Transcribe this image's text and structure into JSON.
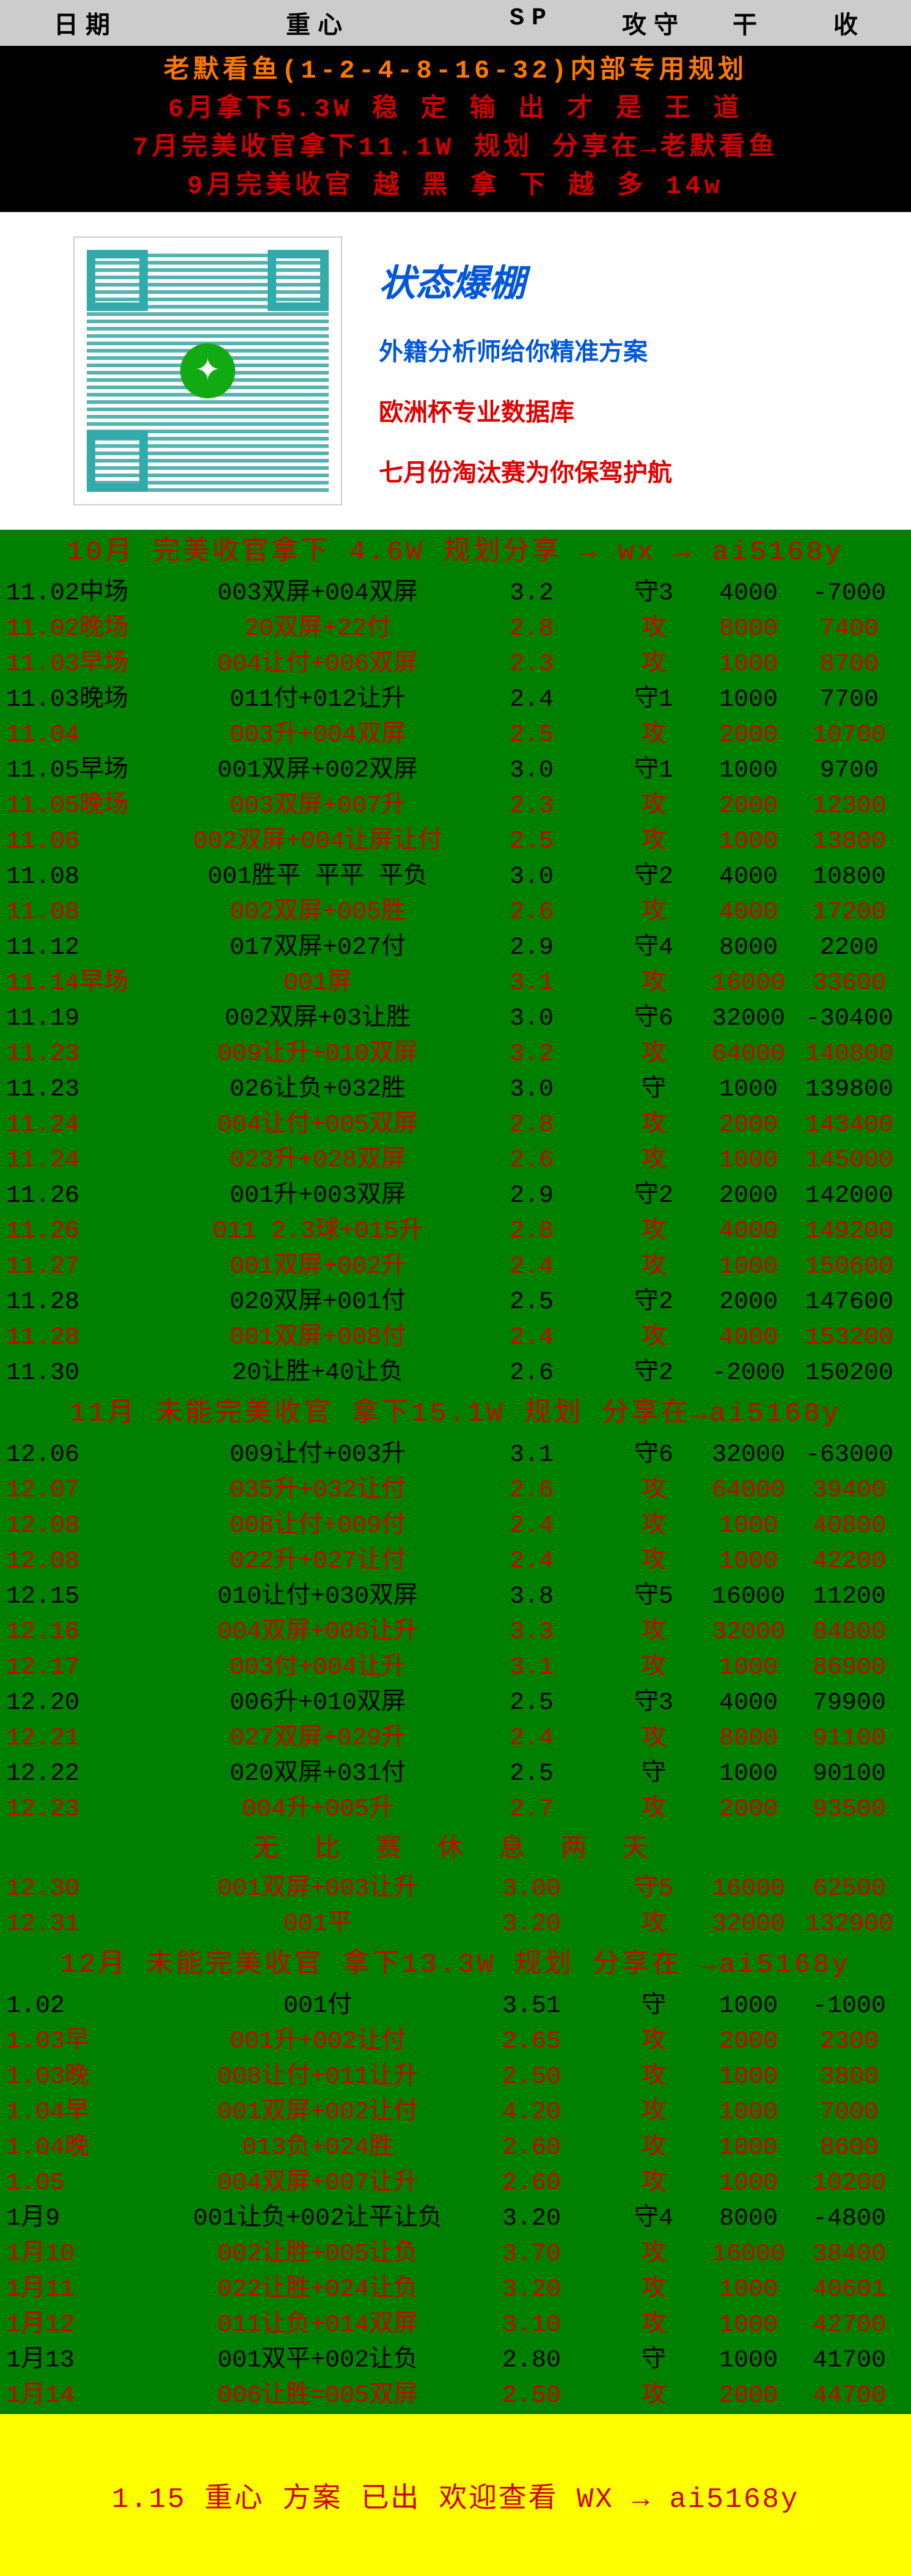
{
  "header": {
    "c1": "日期",
    "c2": "重心",
    "c3": "SP",
    "c4": "攻守",
    "c5": "干",
    "c6": "收"
  },
  "banner": {
    "l1": {
      "text": "老默看鱼(1-2-4-8-16-32)内部专用规划",
      "color": "#ff7800"
    },
    "l2": {
      "text": "6月拿下5.3W 稳 定 输 出 才 是 王 道",
      "color": "#d00000"
    },
    "l3": {
      "text": "7月完美收官拿下11.1W 规划 分享在→老默看鱼",
      "color": "#d00000"
    },
    "l4": {
      "text": "9月完美收官   越 黑 拿 下 越 多 14w",
      "color": "#d00000"
    }
  },
  "promo": {
    "t1": "状态爆棚",
    "t2": "外籍分析师给你精准方案",
    "t3": "欧洲杯专业数据库",
    "t4": "七月份淘汰赛为你保驾护航"
  },
  "sections": [
    {
      "title": "10月 完美收官拿下 4.6W  规划分享 → wx → ai5168y",
      "rows": [
        {
          "style": "black",
          "c": [
            "11.02中场",
            "003双屏+004双屏",
            "3.2",
            "守3",
            "4000",
            "-7000"
          ]
        },
        {
          "style": "red",
          "c": [
            "11.02晚场",
            "20双屏+22付",
            "2.8",
            "攻",
            "8000",
            "7400"
          ]
        },
        {
          "style": "red",
          "c": [
            "11.03早场",
            "004让付+006双屏",
            "2.3",
            "攻",
            "1000",
            "8700"
          ]
        },
        {
          "style": "black",
          "c": [
            "11.03晚场",
            "011付+012让升",
            "2.4",
            "守1",
            "1000",
            "7700"
          ]
        },
        {
          "style": "red",
          "c": [
            "11.04",
            "003升+004双屏",
            "2.5",
            "攻",
            "2000",
            "10700"
          ]
        },
        {
          "style": "black",
          "c": [
            "11.05早场",
            "001双屏+002双屏",
            "3.0",
            "守1",
            "1000",
            "9700"
          ]
        },
        {
          "style": "red",
          "c": [
            "11.05晚场",
            "003双屏+007升",
            "2.3",
            "攻",
            "2000",
            "12300"
          ]
        },
        {
          "style": "red",
          "c": [
            "11.06",
            "002双屏+004让屏让付",
            "2.5",
            "攻",
            "1000",
            "13800"
          ]
        },
        {
          "style": "black",
          "c": [
            "11.08",
            "001胜平 平平 平负",
            "3.0",
            "守2",
            "4000",
            "10800"
          ]
        },
        {
          "style": "red",
          "c": [
            "11.08",
            "002双屏+005胜",
            "2.6",
            "攻",
            "4000",
            "17200"
          ]
        },
        {
          "style": "black",
          "c": [
            "11.12",
            "017双屏+027付",
            "2.9",
            "守4",
            "8000",
            "2200"
          ]
        },
        {
          "style": "red",
          "c": [
            "11.14早场",
            "001屏",
            "3.1",
            "攻",
            "16000",
            "33600"
          ]
        },
        {
          "style": "black",
          "c": [
            "11.19",
            "002双屏+03让胜",
            "3.0",
            "守6",
            "32000",
            "-30400"
          ]
        },
        {
          "style": "red",
          "c": [
            "11.23",
            "009让升+010双屏",
            "3.2",
            "攻",
            "64000",
            "140800"
          ]
        },
        {
          "style": "black",
          "c": [
            "11.23",
            "026让负+032胜",
            "3.0",
            "守",
            "1000",
            "139800"
          ]
        },
        {
          "style": "red",
          "c": [
            "11.24",
            "004让付+005双屏",
            "2.8",
            "攻",
            "2000",
            "143400"
          ]
        },
        {
          "style": "red",
          "c": [
            "11.24",
            "023升+028双屏",
            "2.6",
            "攻",
            "1000",
            "145000"
          ]
        },
        {
          "style": "black",
          "c": [
            "11.26",
            "001升+003双屏",
            "2.9",
            "守2",
            "2000",
            "142000"
          ]
        },
        {
          "style": "red",
          "c": [
            "11.26",
            "011 2.3球+015升",
            "2.8",
            "攻",
            "4000",
            "149200"
          ]
        },
        {
          "style": "red",
          "c": [
            "11.27",
            "001双屏+002升",
            "2.4",
            "攻",
            "1000",
            "150600"
          ]
        },
        {
          "style": "black",
          "c": [
            "11.28",
            "020双屏+001付",
            "2.5",
            "守2",
            "2000",
            "147600"
          ]
        },
        {
          "style": "red",
          "c": [
            "11.28",
            "001双屏+008付",
            "2.4",
            "攻",
            "4000",
            "153200"
          ]
        },
        {
          "style": "black",
          "c": [
            "11.30",
            "20让胜+40让负",
            "2.6",
            "守2",
            "-2000",
            "150200"
          ]
        }
      ]
    },
    {
      "title": "11月 未能完美收官 拿下15.1W 规划 分享在→ai5168y",
      "rows": [
        {
          "style": "black",
          "c": [
            "12.06",
            "009让付+003升",
            "3.1",
            "守6",
            "32000",
            "-63000"
          ]
        },
        {
          "style": "red",
          "c": [
            "12.07",
            "035升+032让付",
            "2.6",
            "攻",
            "64000",
            "39400"
          ]
        },
        {
          "style": "red",
          "c": [
            "12.08",
            "008让付+009付",
            "2.4",
            "攻",
            "1000",
            "40800"
          ]
        },
        {
          "style": "red",
          "c": [
            "12.08",
            "022升+027让付",
            "2.4",
            "攻",
            "1000",
            "42200"
          ]
        },
        {
          "style": "black",
          "c": [
            "12.15",
            "010让付+030双屏",
            "3.8",
            "守5",
            "16000",
            "11200"
          ]
        },
        {
          "style": "red",
          "c": [
            "12.16",
            "004双屏+006让升",
            "3.3",
            "攻",
            "32000",
            "84800"
          ]
        },
        {
          "style": "red",
          "c": [
            "12.17",
            "003付+004让升",
            "3.1",
            "攻",
            "1000",
            "86900"
          ]
        },
        {
          "style": "black",
          "c": [
            "12.20",
            "006升+010双屏",
            "2.5",
            "守3",
            "4000",
            "79900"
          ]
        },
        {
          "style": "red",
          "c": [
            "12.21",
            "027双屏+029升",
            "2.4",
            "攻",
            "8000",
            "91100"
          ]
        },
        {
          "style": "black",
          "c": [
            "12.22",
            "020双屏+031付",
            "2.5",
            "守",
            "1000",
            "90100"
          ]
        },
        {
          "style": "red",
          "c": [
            "12.23",
            "004升+005升",
            "2.7",
            "攻",
            "2000",
            "93500"
          ]
        }
      ],
      "rest": "无 比 赛 休 息 两 天",
      "rows2": [
        {
          "style": "red",
          "c": [
            "12.30",
            "001双屏+003让升",
            "3.00",
            "守5",
            "16000",
            "62500"
          ]
        },
        {
          "style": "red",
          "c": [
            "12.31",
            "001平",
            "3.20",
            "攻",
            "32000",
            "132900"
          ]
        }
      ]
    },
    {
      "title": "12月   未能完美收官 拿下13.3W 规划 分享在 →ai5168y",
      "rows": [
        {
          "style": "black",
          "c": [
            "1.02",
            "001付",
            "3.51",
            "守",
            "1000",
            "-1000"
          ]
        },
        {
          "style": "red",
          "c": [
            "1.03早",
            "001升+002让付",
            "2.65",
            "攻",
            "2000",
            "2300"
          ]
        },
        {
          "style": "red",
          "c": [
            "1.03晚",
            "008让付+011让升",
            "2.50",
            "攻",
            "1000",
            "3800"
          ]
        },
        {
          "style": "red",
          "c": [
            "1.04早",
            "001双屏+002让付",
            "4.20",
            "攻",
            "1000",
            "7000"
          ]
        },
        {
          "style": "red",
          "c": [
            "1.04晚",
            "013负+024胜",
            "2.60",
            "攻",
            "1000",
            "8600"
          ]
        },
        {
          "style": "red",
          "c": [
            "1.05",
            "004双屏+007让升",
            "2.60",
            "攻",
            "1000",
            "10200"
          ]
        },
        {
          "style": "black",
          "c": [
            "1月9",
            "001让负+002让平让负",
            "3.20",
            "守4",
            "8000",
            "-4800"
          ]
        },
        {
          "style": "red",
          "c": [
            "1月10",
            "002让胜+005让负",
            "3.70",
            "攻",
            "16000",
            "38400"
          ]
        },
        {
          "style": "red",
          "c": [
            "1月11",
            "022让胜+024让负",
            "3.20",
            "攻",
            "1000",
            "40601"
          ]
        },
        {
          "style": "red",
          "c": [
            "1月12",
            "011让负+014双屏",
            "3.10",
            "攻",
            "1000",
            "42700"
          ]
        },
        {
          "style": "black",
          "c": [
            "1月13",
            "001双平+002让负",
            "2.80",
            "守",
            "1000",
            "41700"
          ]
        },
        {
          "style": "red",
          "c": [
            "1月14",
            "006让胜=005双屏",
            "2.50",
            "攻",
            "2000",
            "44700"
          ]
        }
      ]
    }
  ],
  "footer": "1.15    重心 方案 已出    欢迎查看     WX     →     ai5168y"
}
